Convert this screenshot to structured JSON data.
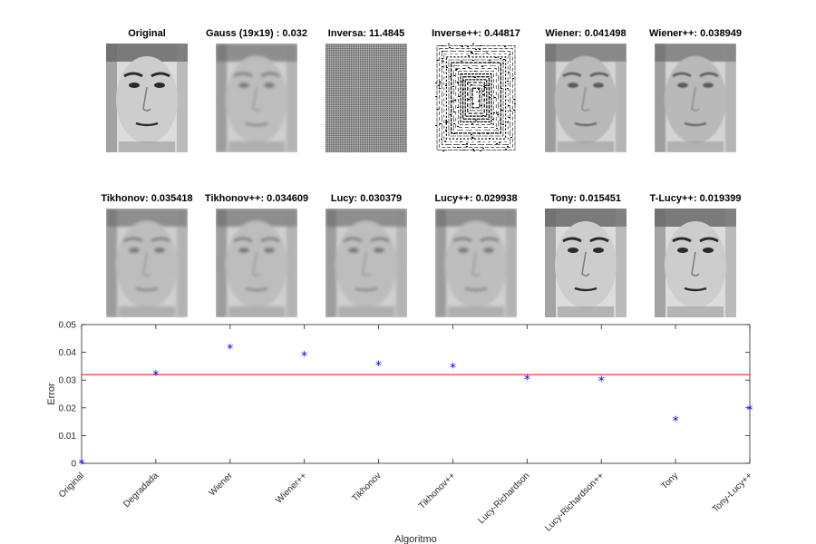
{
  "panels_row1": [
    {
      "title": "Original",
      "kind": "face-sharp"
    },
    {
      "title": "Gauss (19x19) : 0.032",
      "kind": "face-blur"
    },
    {
      "title": "Inversa: 11.4845",
      "kind": "noise-grid"
    },
    {
      "title": "Inverse++: 0.44817",
      "kind": "noise-bw"
    },
    {
      "title": "Wiener: 0.041498",
      "kind": "face-gray"
    },
    {
      "title": "Wiener++: 0.038949",
      "kind": "face-gray"
    }
  ],
  "panels_row2": [
    {
      "title": "Tikhonov: 0.035418",
      "kind": "face-blur"
    },
    {
      "title": "Tikhonov++: 0.034609",
      "kind": "face-blur"
    },
    {
      "title": "Lucy: 0.030379",
      "kind": "face-blur"
    },
    {
      "title": "Lucy++: 0.029938",
      "kind": "face-blur"
    },
    {
      "title": "Tony: 0.015451",
      "kind": "face-sharp"
    },
    {
      "title": "T-Lucy++: 0.019399",
      "kind": "face-sharp"
    }
  ],
  "chart_data": {
    "type": "scatter",
    "xlabel": "Algoritmo",
    "ylabel": "Error",
    "categories": [
      "Original",
      "Degradada",
      "Wiener",
      "Wiener++",
      "Tikhonov",
      "Tikhonov++",
      "Lucy-Richardson",
      "Lucy-Richardson++",
      "Tony",
      "Tony-Lucy++"
    ],
    "values": [
      0,
      0.032,
      0.041498,
      0.038949,
      0.035418,
      0.034609,
      0.030379,
      0.029938,
      0.015451,
      0.019399
    ],
    "reference_line": 0.032,
    "ylim": [
      0,
      0.05
    ],
    "yticks": [
      "0",
      "0.01",
      "0.02",
      "0.03",
      "0.04",
      "0.05"
    ],
    "marker": "*",
    "colors": {
      "marker": "#0000ff",
      "reference_line": "#ff0000",
      "axis": "#262626"
    },
    "grid": false,
    "legend": "none"
  }
}
